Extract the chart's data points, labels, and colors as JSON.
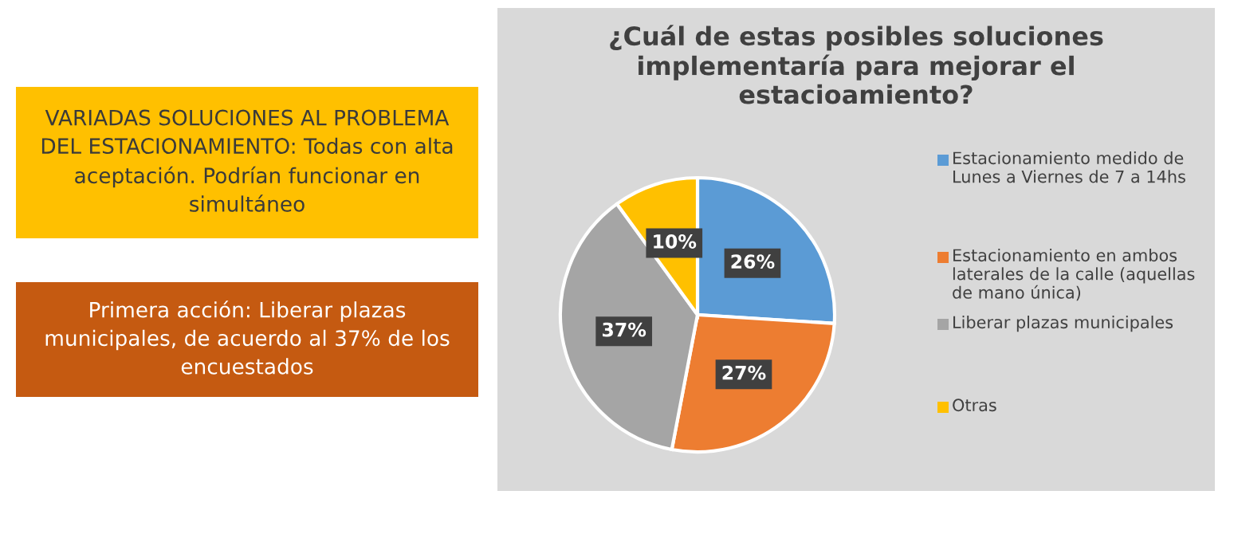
{
  "chart_data": {
    "type": "pie",
    "title": "¿Cuál de estas posibles soluciones implementaría para mejorar el estacioamiento?",
    "categories": [
      "Estacionamiento medido de Lunes a Viernes de 7 a 14hs",
      "Estacionamiento en ambos laterales de la calle (aquellas de mano única)",
      "Liberar plazas municipales",
      "Otras"
    ],
    "values": [
      26,
      27,
      37,
      10
    ],
    "colors": [
      "#5b9bd5",
      "#ed7d31",
      "#a5a5a5",
      "#ffc000"
    ],
    "value_labels": [
      "26%",
      "27%",
      "37%",
      "10%"
    ],
    "legend": "right",
    "annotations": [
      "VARIADAS SOLUCIONES AL PROBLEMA DEL ESTACIONAMIENTO: Todas con alta aceptación. Podrían funcionar en simultáneo",
      "Primera acción: Liberar plazas municipales, de acuerdo al 37% de los encuestados"
    ]
  }
}
